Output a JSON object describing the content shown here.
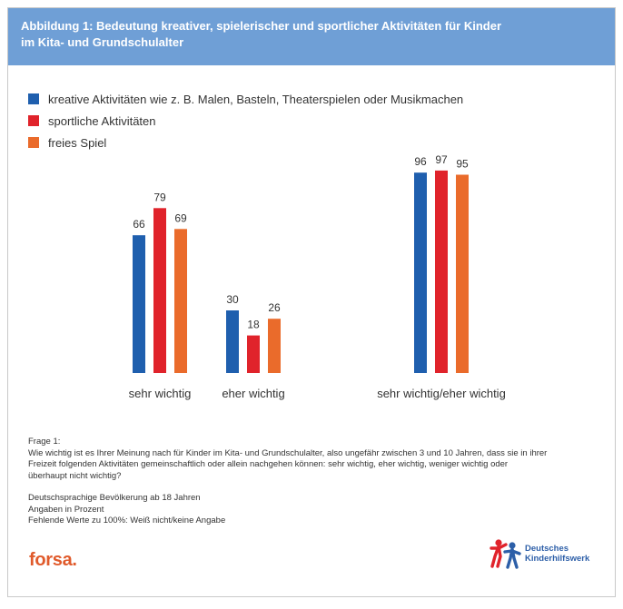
{
  "header": {
    "title_line1": "Abbildung 1: Bedeutung kreativer, spielerischer und sportlicher Aktivitäten für Kinder",
    "title_line2": "im Kita- und Grundschulalter",
    "background": "#6f9fd6"
  },
  "legend": [
    {
      "label": "kreative Aktivitäten wie z. B. Malen, Basteln, Theaterspielen oder Musikmachen",
      "color": "#1f5fae"
    },
    {
      "label": "sportliche Aktivitäten",
      "color": "#e0232b"
    },
    {
      "label": "freies Spiel",
      "color": "#ea6b2b"
    }
  ],
  "chart_data": {
    "type": "bar",
    "title": "Bedeutung kreativer, spielerischer und sportlicher Aktivitäten für Kinder im Kita- und Grundschulalter",
    "categories": [
      "sehr wichtig",
      "eher wichtig",
      "sehr wichtig/eher wichtig"
    ],
    "series": [
      {
        "name": "kreative Aktivitäten wie z. B. Malen, Basteln, Theaterspielen oder Musikmachen",
        "color": "#1f5fae",
        "values": [
          66,
          30,
          96
        ]
      },
      {
        "name": "sportliche Aktivitäten",
        "color": "#e0232b",
        "values": [
          79,
          18,
          97
        ]
      },
      {
        "name": "freies Spiel",
        "color": "#ea6b2b",
        "values": [
          69,
          26,
          95
        ]
      }
    ],
    "xlabel": "",
    "ylabel": "",
    "ylim": [
      0,
      100
    ],
    "grid": false,
    "unit": "Prozent"
  },
  "note": {
    "question_label": "Frage 1:",
    "question_line1": "Wie wichtig ist es Ihrer Meinung nach für Kinder im Kita- und Grundschulalter, also ungefähr zwischen 3 und 10 Jahren, dass sie in ihrer",
    "question_line2": "Freizeit folgenden Aktivitäten gemeinschaftlich oder allein nachgehen können: sehr wichtig, eher wichtig, weniger wichtig oder",
    "question_line3": "überhaupt nicht wichtig?",
    "basis": "Deutschsprachige Bevölkerung ab 18 Jahren",
    "unit": "Angaben in Prozent",
    "missing": "Fehlende Werte zu 100%: Weiß nicht/keine Angabe"
  },
  "logos": {
    "forsa": "forsa.",
    "dkhw_line1": "Deutsches",
    "dkhw_line2": "Kinderhilfswerk"
  }
}
